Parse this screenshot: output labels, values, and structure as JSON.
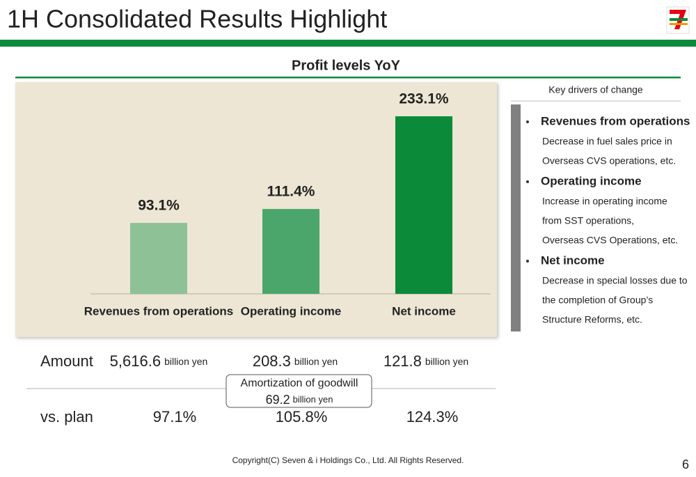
{
  "header": {
    "title": "1H Consolidated Results Highlight",
    "page_number": "6"
  },
  "chart_data": {
    "type": "bar",
    "title": "Profit levels YoY",
    "categories": [
      "Revenues from operations",
      "Operating income",
      "Net income"
    ],
    "values": [
      93.1,
      111.4,
      233.1
    ],
    "value_labels": [
      "93.1%",
      "111.4%",
      "233.1%"
    ],
    "colors": [
      "#8fc196",
      "#4aa66a",
      "#0b8a3a"
    ]
  },
  "drivers": {
    "title": "Key drivers of change",
    "items": [
      {
        "heading": "Revenues from operations",
        "lines": [
          "Decrease in fuel sales price in",
          "Overseas CVS operations, etc."
        ]
      },
      {
        "heading": "Operating income",
        "lines": [
          "Increase in operating income",
          "from SST operations,",
          "Overseas CVS Operations, etc."
        ]
      },
      {
        "heading": "Net income",
        "lines": [
          "Decrease in special losses due to",
          "the completion of Group’s",
          "Structure Reforms, etc."
        ]
      }
    ]
  },
  "results": {
    "amount_label": "Amount",
    "amounts": [
      {
        "value": "5,616.6",
        "unit": "billion yen"
      },
      {
        "value": "208.3",
        "unit": "billion yen"
      },
      {
        "value": "121.8",
        "unit": "billion yen"
      }
    ],
    "note": {
      "title": "Amortization of goodwill",
      "value": "69.2",
      "unit": "billion yen"
    },
    "plan_label": "vs. plan",
    "plan": [
      "97.1%",
      "105.8%",
      "124.3%"
    ]
  },
  "footer": {
    "copyright": "Copyright(C) Seven & i Holdings Co., Ltd. All Rights Reserved."
  }
}
